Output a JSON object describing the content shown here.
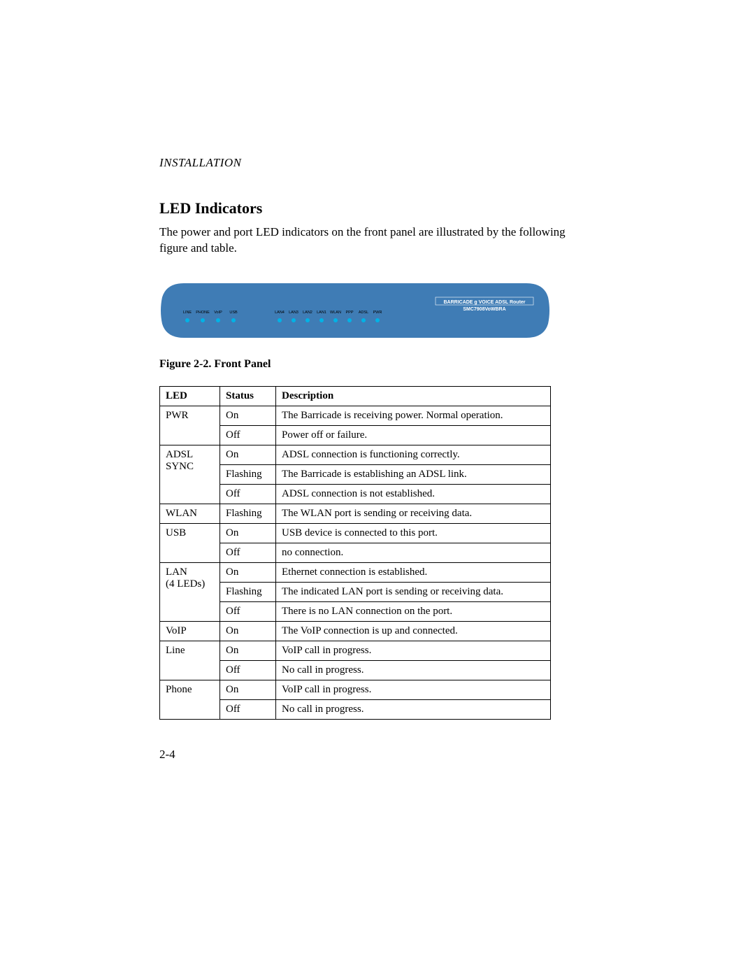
{
  "chapter": "INSTALLATION",
  "section_title": "LED Indicators",
  "intro_text": "The power and port LED indicators on the front panel are illustrated by the following figure and table.",
  "figure_caption": "Figure 2-2.  Front Panel",
  "router_figure": {
    "panel_color": "#3f7cb5",
    "led_color": "#00b3e6",
    "label_color": "#000000",
    "brand_color": "#ffffff",
    "left_labels": [
      "LINE",
      "PHONE",
      "VoIP",
      "USB"
    ],
    "right_labels": [
      "LAN4",
      "LAN3",
      "LAN2",
      "LAN1",
      "WLAN",
      "PPP",
      "ADSL",
      "PWR"
    ],
    "brand_line1": "BARRICADE  g  VOICE ADSL Router",
    "brand_line2": "SMC7908VoWBRA"
  },
  "table": {
    "columns": [
      "LED",
      "Status",
      "Description"
    ],
    "rows": [
      {
        "led": "PWR",
        "rowspan": 2,
        "entries": [
          {
            "status": "On",
            "desc": "The Barricade is receiving power. Normal operation."
          },
          {
            "status": "Off",
            "desc": "Power off or failure."
          }
        ]
      },
      {
        "led": "ADSL SYNC",
        "led_lines": [
          "ADSL",
          "SYNC"
        ],
        "rowspan": 3,
        "entries": [
          {
            "status": "On",
            "desc": "ADSL connection is functioning correctly."
          },
          {
            "status": "Flashing",
            "desc": "The Barricade is establishing an ADSL link."
          },
          {
            "status": "Off",
            "desc": "ADSL connection is not established."
          }
        ]
      },
      {
        "led": "WLAN",
        "rowspan": 1,
        "entries": [
          {
            "status": "Flashing",
            "desc": "The WLAN port is sending or receiving data."
          }
        ]
      },
      {
        "led": "USB",
        "rowspan": 2,
        "entries": [
          {
            "status": "On",
            "desc": "USB device is connected to this port."
          },
          {
            "status": "Off",
            "desc": "no connection."
          }
        ]
      },
      {
        "led": "LAN (4 LEDs)",
        "led_lines": [
          "LAN",
          "(4 LEDs)"
        ],
        "rowspan": 3,
        "entries": [
          {
            "status": "On",
            "desc": "Ethernet connection is established."
          },
          {
            "status": "Flashing",
            "desc": "The indicated LAN port is sending or receiving data."
          },
          {
            "status": "Off",
            "desc": "There is no LAN connection on the port."
          }
        ]
      },
      {
        "led": "VoIP",
        "rowspan": 1,
        "entries": [
          {
            "status": "On",
            "desc": "The VoIP connection is up and connected."
          }
        ]
      },
      {
        "led": "Line",
        "rowspan": 2,
        "entries": [
          {
            "status": "On",
            "desc": "VoIP call in progress."
          },
          {
            "status": "Off",
            "desc": "No call in progress."
          }
        ]
      },
      {
        "led": "Phone",
        "rowspan": 2,
        "entries": [
          {
            "status": "On",
            "desc": "VoIP call in progress."
          },
          {
            "status": "Off",
            "desc": "No call in progress."
          }
        ]
      }
    ]
  },
  "page_number": "2-4"
}
